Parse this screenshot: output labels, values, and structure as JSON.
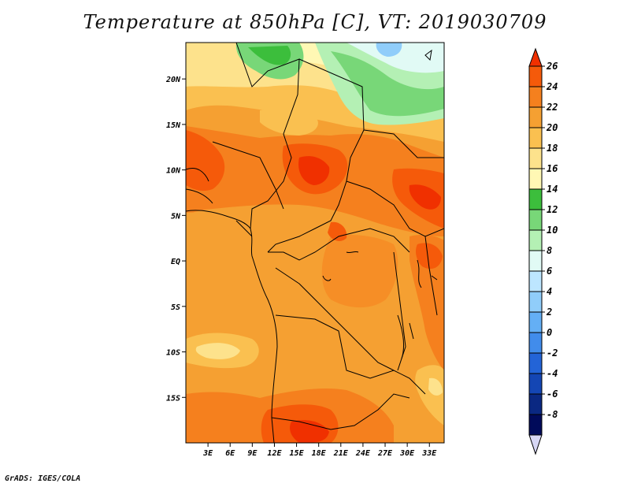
{
  "title": "Temperature at 850hPa [C], VT: 2019030709",
  "credit": "GrADS: IGES/COLA",
  "map": {
    "lat_ticks": [
      "20N",
      "15N",
      "10N",
      "5N",
      "EQ",
      "5S",
      "10S",
      "15S"
    ],
    "lon_ticks": [
      "3E",
      "6E",
      "9E",
      "12E",
      "15E",
      "18E",
      "21E",
      "24E",
      "27E",
      "30E",
      "33E"
    ],
    "lat_range": [
      -20,
      24
    ],
    "lon_range": [
      0,
      35
    ]
  },
  "colorbar": {
    "labels": [
      "26",
      "24",
      "22",
      "20",
      "18",
      "16",
      "14",
      "12",
      "10",
      "8",
      "6",
      "4",
      "2",
      "0",
      "-2",
      "-4",
      "-6",
      "-8"
    ],
    "colors": [
      "#f03000",
      "#f55a0a",
      "#f5801e",
      "#f5a032",
      "#fac050",
      "#fde28c",
      "#fff8b4",
      "#3cbe3c",
      "#78d778",
      "#b4f0b4",
      "#e1faf5",
      "#bde6ff",
      "#90cdfa",
      "#64aff5",
      "#418ceb",
      "#2364d7",
      "#1446b4",
      "#0a2882",
      "#000a5a",
      "#d7d7f5"
    ]
  }
}
